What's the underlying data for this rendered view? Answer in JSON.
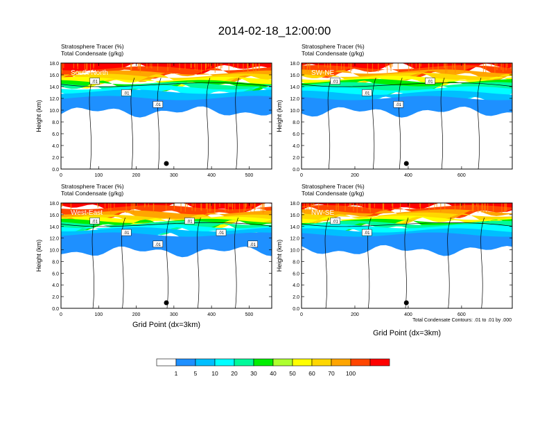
{
  "figure": {
    "title": "2014-02-18_12:00:00",
    "xlabel": "Grid Point (dx=3km)",
    "ylabel": "Height (km)",
    "contour_note": "Total Condensate Contours: .01 to .01 by .000"
  },
  "panels": [
    {
      "label": "South-North",
      "line1": "Stratosphere Tracer   (%)",
      "line2": "Total Condensate   (g/kg)",
      "xticks": [
        "0",
        "100",
        "200",
        "300",
        "400",
        "500"
      ],
      "xmax": 560,
      "marker_x": 280,
      "contour_labels": [
        ".01",
        ".01",
        ".01"
      ]
    },
    {
      "label": "SW-NE",
      "line1": "Stratosphere Tracer   (%)",
      "line2": "Total Condensate   (g/kg)",
      "xticks": [
        "0",
        "200",
        "400",
        "600"
      ],
      "xmax": 790,
      "marker_x": 393,
      "contour_labels": [
        ".01",
        ".01",
        ".01",
        ".01"
      ]
    },
    {
      "label": "West-East",
      "line1": "Stratosphere Tracer   (%)",
      "line2": "Total Condensate   (g/kg)",
      "xticks": [
        "0",
        "100",
        "200",
        "300",
        "400",
        "500"
      ],
      "xmax": 560,
      "marker_x": 280,
      "contour_labels": [
        ".01",
        ".01",
        ".01",
        ".01",
        ".01",
        ".01"
      ]
    },
    {
      "label": "NW-SE",
      "line1": "Stratosphere Tracer   (%)",
      "line2": "Total Condensate   (g/kg)",
      "xticks": [
        "0",
        "200",
        "400",
        "600"
      ],
      "xmax": 790,
      "marker_x": 393,
      "contour_labels": [
        ".01",
        ".01"
      ]
    }
  ],
  "yticks": [
    "0.0",
    "2.0",
    "4.0",
    "6.0",
    "8.0",
    "10.0",
    "12.0",
    "14.0",
    "16.0",
    "18.0"
  ],
  "colorbar": {
    "labels": [
      "1",
      "5",
      "10",
      "20",
      "30",
      "40",
      "50",
      "60",
      "70",
      "100"
    ],
    "colors": [
      "#ffffff",
      "#1e90ff",
      "#00bfff",
      "#00ffff",
      "#00fa9a",
      "#00ee00",
      "#adff2f",
      "#ffff00",
      "#ffd700",
      "#ffa500",
      "#ff4500",
      "#ff0000"
    ]
  }
}
